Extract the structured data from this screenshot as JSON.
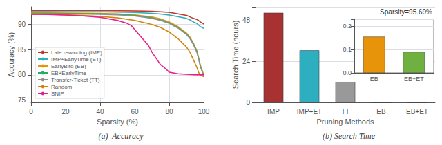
{
  "chart_data": [
    {
      "type": "line",
      "title": "(a)  Accuracy",
      "xlabel": "Sparsity (%)",
      "ylabel": "Accuracy (%)",
      "xlim": [
        0,
        100
      ],
      "ylim": [
        74.5,
        93.5
      ],
      "xticks": [
        0,
        20,
        40,
        60,
        80,
        100
      ],
      "yticks": [
        75,
        80,
        85,
        90
      ],
      "grid": true,
      "legend": "lower left",
      "series": [
        {
          "name": "Late rewinding (IMP)",
          "color": "#c0392b",
          "shade": 0.12,
          "x": [
            0,
            5,
            10,
            20,
            30,
            40,
            50,
            60,
            70,
            75,
            80,
            85,
            90,
            92,
            94,
            96,
            97,
            98,
            99,
            100
          ],
          "values": [
            92.7,
            92.7,
            92.7,
            92.75,
            92.75,
            92.75,
            92.72,
            92.68,
            92.6,
            92.5,
            92.4,
            92.1,
            91.8,
            91.5,
            91.2,
            91.0,
            90.8,
            90.5,
            90.3,
            90.1
          ]
        },
        {
          "name": "IMP+EarlyTime (ET)",
          "color": "#2eafc0",
          "shade": 0.12,
          "x": [
            0,
            5,
            10,
            20,
            30,
            40,
            50,
            60,
            70,
            75,
            80,
            85,
            90,
            92,
            94,
            96,
            97,
            98,
            99,
            100
          ],
          "values": [
            92.5,
            92.5,
            92.5,
            92.52,
            92.52,
            92.5,
            92.45,
            92.38,
            92.2,
            92.05,
            91.85,
            91.55,
            91.2,
            90.9,
            90.5,
            90.2,
            89.9,
            89.6,
            89.4,
            89.2
          ]
        },
        {
          "name": "EarlyBird (EB)",
          "color": "#e8940a",
          "shade": 0.12,
          "x": [
            0,
            5,
            10,
            20,
            30,
            40,
            50,
            60,
            70,
            75,
            80,
            85,
            90,
            92,
            94,
            96,
            97,
            98,
            99,
            100
          ],
          "values": [
            92.3,
            92.3,
            92.3,
            92.28,
            92.25,
            92.2,
            92.1,
            91.9,
            91.5,
            91.1,
            90.5,
            89.6,
            88.3,
            87.5,
            86.3,
            84.8,
            83.5,
            82.0,
            81.0,
            80.0
          ]
        },
        {
          "name": "EB+EarlyTime",
          "color": "#27ae60",
          "shade": 0.12,
          "x": [
            0,
            5,
            10,
            20,
            30,
            40,
            50,
            60,
            70,
            75,
            80,
            85,
            90,
            92,
            94,
            96,
            97,
            98,
            99,
            100
          ],
          "values": [
            92.2,
            92.2,
            92.2,
            92.18,
            92.15,
            92.1,
            92.0,
            91.8,
            91.3,
            90.9,
            90.3,
            89.4,
            88.1,
            87.3,
            86.1,
            84.6,
            83.3,
            81.8,
            80.8,
            79.8
          ]
        },
        {
          "name": "Transfer-Ticket (TT)",
          "color": "#909090",
          "shade": 0.12,
          "x": [
            0,
            5,
            10,
            20,
            30,
            40,
            50,
            60,
            70,
            75,
            80,
            85,
            90,
            92,
            94,
            96,
            97,
            98,
            99,
            100
          ],
          "values": [
            92.1,
            92.1,
            92.1,
            92.08,
            92.05,
            92.0,
            91.9,
            91.7,
            91.2,
            90.8,
            90.2,
            89.3,
            88.0,
            87.2,
            86.0,
            84.5,
            83.2,
            81.7,
            80.7,
            79.7
          ]
        },
        {
          "name": "Random",
          "color": "#d4820a",
          "shade": 0.12,
          "x": [
            0,
            5,
            10,
            20,
            30,
            40,
            50,
            60,
            70,
            75,
            80,
            85,
            90,
            92,
            94,
            96,
            97,
            98,
            99,
            100
          ],
          "values": [
            92.0,
            92.0,
            92.0,
            91.9,
            91.8,
            91.6,
            91.3,
            90.8,
            90.0,
            89.4,
            88.5,
            87.2,
            85.5,
            84.5,
            83.0,
            81.5,
            80.5,
            80.0,
            79.8,
            79.6
          ]
        },
        {
          "name": "SNIP",
          "color": "#e91e8c",
          "shade": 0.12,
          "x": [
            0,
            5,
            10,
            20,
            30,
            40,
            50,
            55,
            58,
            60,
            62,
            65,
            68,
            70,
            72,
            75,
            78,
            80,
            85,
            90,
            95,
            100
          ],
          "values": [
            92.0,
            92.0,
            91.95,
            91.85,
            91.7,
            91.4,
            90.8,
            90.3,
            89.8,
            89.0,
            88.2,
            87.0,
            85.8,
            84.5,
            83.5,
            82.0,
            81.2,
            80.5,
            80.2,
            80.1,
            80.0,
            80.0
          ]
        }
      ]
    },
    {
      "type": "bar",
      "title": "(b) Search Time",
      "xlabel": "Pruning Methods",
      "ylabel": "Search Time (hours)",
      "annotation": "Sparsity=95.69%",
      "categories": [
        "IMP",
        "IMP+ET",
        "TT",
        "EB",
        "EB+ET"
      ],
      "values": [
        52.5,
        30.5,
        12.0,
        0.001,
        0.001
      ],
      "colors": [
        "#a83232",
        "#2eafc0",
        "#999999",
        "#e8940a",
        "#70b040"
      ],
      "ylim": [
        0,
        56
      ],
      "yticks": [
        0,
        24,
        48
      ],
      "grid": true
    },
    {
      "type": "bar",
      "categories": [
        "EB",
        "EB+ET"
      ],
      "values": [
        0.155,
        0.09
      ],
      "colors": [
        "#e8940a",
        "#70b040"
      ],
      "ylim": [
        0,
        0.23
      ],
      "yticks": [
        {
          "value": 0,
          "label": "0.0"
        },
        0.1,
        0.2
      ],
      "grid": true
    }
  ]
}
